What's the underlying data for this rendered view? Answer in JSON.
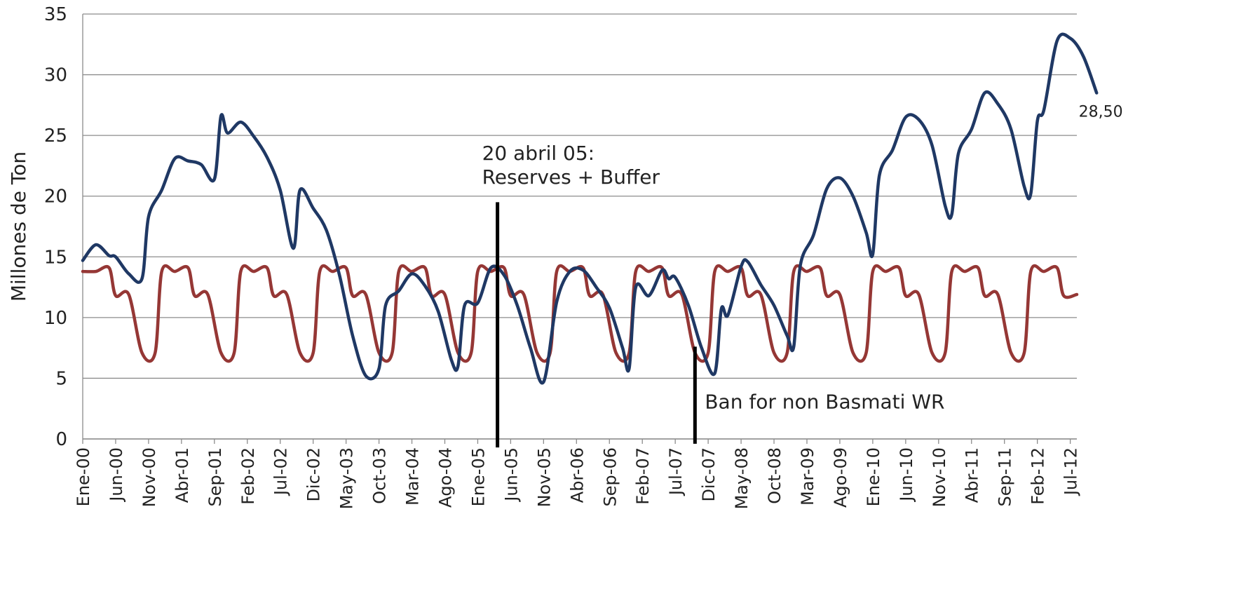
{
  "chart_data": {
    "type": "line",
    "ylabel": "Millones de Ton",
    "xlabel": "",
    "ylim": [
      0,
      35
    ],
    "yticks": [
      "0",
      "5",
      "10",
      "15",
      "20",
      "25",
      "30",
      "35"
    ],
    "grid": "horizontal",
    "legend": "none",
    "x_tick_labels": [
      "Ene-00",
      "Jun-00",
      "Nov-00",
      "Abr-01",
      "Sep-01",
      "Feb-02",
      "Jul-02",
      "Dic-02",
      "May-03",
      "Oct-03",
      "Mar-04",
      "Ago-04",
      "Ene-05",
      "Jun-05",
      "Nov-05",
      "Abr-06",
      "Sep-06",
      "Feb-07",
      "Jul-07",
      "Dic-07",
      "May-08",
      "Oct-08",
      "Mar-09",
      "Ago-09",
      "Ene-10",
      "Jun-10",
      "Nov-10",
      "Abr-11",
      "Sep-11",
      "Feb-12",
      "Jul-12"
    ],
    "x_start": "2000-01",
    "x_end": "2012-08",
    "series": [
      {
        "color": "#1f3864",
        "points": [
          [
            "2000-01",
            14.7
          ],
          [
            "2000-03",
            16.0
          ],
          [
            "2000-05",
            15.1
          ],
          [
            "2000-06",
            15.0
          ],
          [
            "2000-08",
            13.6
          ],
          [
            "2000-10",
            13.2
          ],
          [
            "2000-11",
            18.3
          ],
          [
            "2001-01",
            20.5
          ],
          [
            "2001-03",
            23.1
          ],
          [
            "2001-05",
            22.9
          ],
          [
            "2001-07",
            22.6
          ],
          [
            "2001-09",
            21.4
          ],
          [
            "2001-10",
            26.6
          ],
          [
            "2001-11",
            25.2
          ],
          [
            "2002-01",
            26.1
          ],
          [
            "2002-03",
            24.9
          ],
          [
            "2002-05",
            23.2
          ],
          [
            "2002-07",
            20.5
          ],
          [
            "2002-09",
            15.7
          ],
          [
            "2002-10",
            20.5
          ],
          [
            "2002-12",
            19.0
          ],
          [
            "2003-02",
            17.2
          ],
          [
            "2003-04",
            13.5
          ],
          [
            "2003-06",
            8.5
          ],
          [
            "2003-08",
            5.2
          ],
          [
            "2003-10",
            5.8
          ],
          [
            "2003-11",
            11.0
          ],
          [
            "2004-01",
            12.2
          ],
          [
            "2004-03",
            13.6
          ],
          [
            "2004-05",
            12.6
          ],
          [
            "2004-07",
            10.5
          ],
          [
            "2004-09",
            6.5
          ],
          [
            "2004-10",
            6.0
          ],
          [
            "2004-11",
            11.0
          ],
          [
            "2005-01",
            11.2
          ],
          [
            "2005-03",
            14.1
          ],
          [
            "2005-05",
            13.5
          ],
          [
            "2005-07",
            11.0
          ],
          [
            "2005-09",
            7.5
          ],
          [
            "2005-11",
            4.7
          ],
          [
            "2006-01",
            11.3
          ],
          [
            "2006-03",
            13.8
          ],
          [
            "2006-05",
            13.9
          ],
          [
            "2006-07",
            12.5
          ],
          [
            "2006-09",
            10.8
          ],
          [
            "2006-11",
            7.5
          ],
          [
            "2006-12",
            5.8
          ],
          [
            "2007-01",
            12.5
          ],
          [
            "2007-03",
            11.8
          ],
          [
            "2007-05",
            13.9
          ],
          [
            "2007-06",
            13.2
          ],
          [
            "2007-07",
            13.3
          ],
          [
            "2007-09",
            11.0
          ],
          [
            "2007-11",
            7.5
          ],
          [
            "2008-01",
            5.4
          ],
          [
            "2008-02",
            10.7
          ],
          [
            "2008-03",
            10.2
          ],
          [
            "2008-05",
            14.2
          ],
          [
            "2008-06",
            14.6
          ],
          [
            "2008-08",
            12.7
          ],
          [
            "2008-10",
            11.0
          ],
          [
            "2008-12",
            8.5
          ],
          [
            "2009-01",
            7.6
          ],
          [
            "2009-02",
            14.3
          ],
          [
            "2009-04",
            16.8
          ],
          [
            "2009-06",
            20.6
          ],
          [
            "2009-08",
            21.5
          ],
          [
            "2009-10",
            20.0
          ],
          [
            "2009-12",
            17.0
          ],
          [
            "2010-01",
            15.2
          ],
          [
            "2010-02",
            21.7
          ],
          [
            "2010-04",
            23.8
          ],
          [
            "2010-06",
            26.5
          ],
          [
            "2010-08",
            26.3
          ],
          [
            "2010-10",
            24.2
          ],
          [
            "2010-12",
            19.2
          ],
          [
            "2011-01",
            18.5
          ],
          [
            "2011-02",
            23.5
          ],
          [
            "2011-04",
            25.5
          ],
          [
            "2011-06",
            28.5
          ],
          [
            "2011-08",
            27.6
          ],
          [
            "2011-10",
            25.5
          ],
          [
            "2011-12",
            20.8
          ],
          [
            "2012-01",
            20.2
          ],
          [
            "2012-02",
            26.2
          ],
          [
            "2012-03",
            27.1
          ],
          [
            "2012-05",
            32.8
          ],
          [
            "2012-07",
            33.0
          ],
          [
            "2012-09",
            31.5
          ],
          [
            "2012-11",
            28.5
          ]
        ]
      },
      {
        "color": "#953735",
        "points": [
          [
            "2000-01",
            13.8
          ],
          [
            "2000-03",
            13.8
          ],
          [
            "2000-05",
            14.1
          ],
          [
            "2000-06",
            11.8
          ],
          [
            "2000-08",
            11.9
          ],
          [
            "2000-10",
            7.1
          ],
          [
            "2000-12",
            7.1
          ],
          [
            "2001-01",
            13.8
          ],
          [
            "2001-03",
            13.8
          ],
          [
            "2001-05",
            14.1
          ],
          [
            "2001-06",
            11.8
          ],
          [
            "2001-08",
            11.9
          ],
          [
            "2001-10",
            7.1
          ],
          [
            "2001-12",
            7.1
          ],
          [
            "2002-01",
            13.8
          ],
          [
            "2002-03",
            13.8
          ],
          [
            "2002-05",
            14.1
          ],
          [
            "2002-06",
            11.8
          ],
          [
            "2002-08",
            11.9
          ],
          [
            "2002-10",
            7.1
          ],
          [
            "2002-12",
            7.1
          ],
          [
            "2003-01",
            13.8
          ],
          [
            "2003-03",
            13.8
          ],
          [
            "2003-05",
            14.1
          ],
          [
            "2003-06",
            11.8
          ],
          [
            "2003-08",
            11.9
          ],
          [
            "2003-10",
            7.1
          ],
          [
            "2003-12",
            7.1
          ],
          [
            "2004-01",
            13.8
          ],
          [
            "2004-03",
            13.8
          ],
          [
            "2004-05",
            14.1
          ],
          [
            "2004-06",
            11.8
          ],
          [
            "2004-08",
            11.9
          ],
          [
            "2004-10",
            7.1
          ],
          [
            "2004-12",
            7.1
          ],
          [
            "2005-01",
            13.8
          ],
          [
            "2005-03",
            13.8
          ],
          [
            "2005-05",
            14.1
          ],
          [
            "2005-06",
            11.8
          ],
          [
            "2005-08",
            11.9
          ],
          [
            "2005-10",
            7.1
          ],
          [
            "2005-12",
            7.1
          ],
          [
            "2006-01",
            13.8
          ],
          [
            "2006-03",
            13.8
          ],
          [
            "2006-05",
            14.1
          ],
          [
            "2006-06",
            11.8
          ],
          [
            "2006-08",
            11.9
          ],
          [
            "2006-10",
            7.1
          ],
          [
            "2006-12",
            7.1
          ],
          [
            "2007-01",
            13.8
          ],
          [
            "2007-03",
            13.8
          ],
          [
            "2007-05",
            14.1
          ],
          [
            "2007-06",
            11.8
          ],
          [
            "2007-08",
            11.9
          ],
          [
            "2007-10",
            7.1
          ],
          [
            "2007-12",
            7.1
          ],
          [
            "2008-01",
            13.8
          ],
          [
            "2008-03",
            13.8
          ],
          [
            "2008-05",
            14.1
          ],
          [
            "2008-06",
            11.8
          ],
          [
            "2008-08",
            11.9
          ],
          [
            "2008-10",
            7.1
          ],
          [
            "2008-12",
            7.1
          ],
          [
            "2009-01",
            13.8
          ],
          [
            "2009-03",
            13.8
          ],
          [
            "2009-05",
            14.1
          ],
          [
            "2009-06",
            11.8
          ],
          [
            "2009-08",
            11.9
          ],
          [
            "2009-10",
            7.1
          ],
          [
            "2009-12",
            7.1
          ],
          [
            "2010-01",
            13.8
          ],
          [
            "2010-03",
            13.8
          ],
          [
            "2010-05",
            14.1
          ],
          [
            "2010-06",
            11.8
          ],
          [
            "2010-08",
            11.9
          ],
          [
            "2010-10",
            7.1
          ],
          [
            "2010-12",
            7.1
          ],
          [
            "2011-01",
            13.8
          ],
          [
            "2011-03",
            13.8
          ],
          [
            "2011-05",
            14.1
          ],
          [
            "2011-06",
            11.8
          ],
          [
            "2011-08",
            11.9
          ],
          [
            "2011-10",
            7.1
          ],
          [
            "2011-12",
            7.1
          ],
          [
            "2012-01",
            13.8
          ],
          [
            "2012-03",
            13.8
          ],
          [
            "2012-05",
            14.1
          ],
          [
            "2012-06",
            11.8
          ],
          [
            "2012-08",
            11.9
          ]
        ]
      }
    ],
    "data_labels": [
      {
        "text": "28,50",
        "x": "2012-11",
        "y": 28.5
      }
    ],
    "annotations": [
      {
        "lines": [
          "20 abril 05:",
          "Reserves + Buffer"
        ],
        "x": "2005-04",
        "y_from": -0.7,
        "y_to": 19.5
      },
      {
        "lines": [
          "Ban for non Basmati WR"
        ],
        "x": "2007-10",
        "y_from": -0.4,
        "y_to": 7.6
      }
    ]
  }
}
